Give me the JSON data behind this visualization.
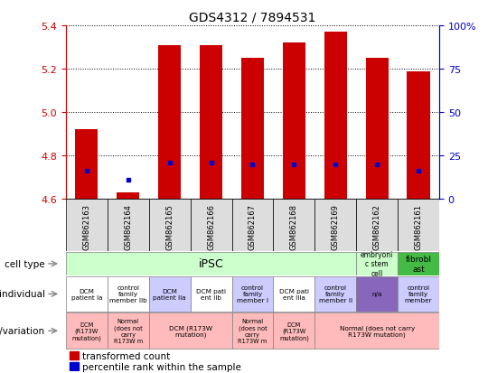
{
  "title": "GDS4312 / 7894531",
  "samples": [
    "GSM862163",
    "GSM862164",
    "GSM862165",
    "GSM862166",
    "GSM862167",
    "GSM862168",
    "GSM862169",
    "GSM862162",
    "GSM862161"
  ],
  "bar_tops": [
    4.92,
    4.63,
    5.31,
    5.31,
    5.25,
    5.32,
    5.37,
    5.25,
    5.19
  ],
  "bar_bottom": 4.6,
  "blue_dots": [
    4.73,
    4.69,
    4.77,
    4.77,
    4.76,
    4.76,
    4.76,
    4.76,
    4.73
  ],
  "ylim": [
    4.6,
    5.4
  ],
  "yticks_left": [
    4.6,
    4.8,
    5.0,
    5.2,
    5.4
  ],
  "yticks_right": [
    0,
    25,
    50,
    75,
    100
  ],
  "left_color": "#cc0000",
  "right_color": "#0000cc",
  "bar_color": "#cc0000",
  "dot_color": "#0000cc",
  "ind_colors": [
    "#ffffff",
    "#ffffff",
    "#ccccff",
    "#ffffff",
    "#ccccff",
    "#ffffff",
    "#ccccff",
    "#8866bb",
    "#ccccff"
  ],
  "ind_labels": [
    "DCM\npatient Ia",
    "control\nfamily\nmember IIb",
    "DCM\npatient IIa",
    "DCM pati\nent IIb",
    "control\nfamily\nmember I",
    "DCM pati\nent IIIa",
    "control\nfamily\nmember II",
    "n/a",
    "control\nfamily\nmember"
  ],
  "cell_type_ipsc_color": "#ccffcc",
  "cell_type_esc_color": "#ccffcc",
  "cell_type_fibro_color": "#44bb44",
  "genotype_color": "#ffbbbb",
  "sample_bg": "#dddddd",
  "legend_items": [
    "transformed count",
    "percentile rank within the sample"
  ]
}
